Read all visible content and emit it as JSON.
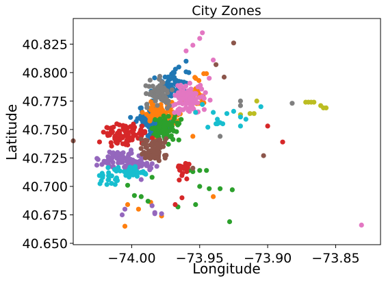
{
  "chart_data": {
    "type": "scatter",
    "title": "City Zones",
    "xlabel": "Longitude",
    "ylabel": "Latitude",
    "xlim": [
      -74.043,
      -73.817
    ],
    "ylim": [
      40.6488,
      40.8475
    ],
    "xticks": [
      -74.0,
      -73.95,
      -73.9,
      -73.85
    ],
    "xtick_labels": [
      "−74.00",
      "−73.95",
      "−73.90",
      "−73.85"
    ],
    "yticks": [
      40.65,
      40.675,
      40.7,
      40.725,
      40.75,
      40.775,
      40.8,
      40.825
    ],
    "ytick_labels": [
      "40.650",
      "40.675",
      "40.700",
      "40.725",
      "40.750",
      "40.775",
      "40.800",
      "40.825"
    ],
    "grid": false,
    "legend": "none",
    "clusters": [
      {
        "color": "#1f77b4",
        "dense": [
          {
            "center": [
              -73.985,
              40.755
            ],
            "spread": [
              0.006,
              0.006
            ],
            "n": 80
          },
          {
            "center": [
              -73.97,
              40.79
            ],
            "spread": [
              0.006,
              0.006
            ],
            "n": 60
          }
        ],
        "points": [
          [
            -73.993,
            40.769
          ],
          [
            -73.96,
            40.81
          ],
          [
            -73.985,
            40.775
          ],
          [
            -73.958,
            40.8
          ]
        ]
      },
      {
        "color": "#ff7f0e",
        "dense": [
          {
            "center": [
              -73.977,
              40.764
            ],
            "spread": [
              0.006,
              0.004
            ],
            "n": 75
          },
          {
            "center": [
              -73.952,
              40.782
            ],
            "spread": [
              0.003,
              0.006
            ],
            "n": 25
          }
        ],
        "points": [
          [
            -73.947,
            40.799
          ],
          [
            -73.961,
            40.774
          ],
          [
            -73.98,
            40.74
          ],
          [
            -73.965,
            40.758
          ],
          [
            -73.945,
            40.799
          ],
          [
            -73.94,
            40.691
          ],
          [
            -73.955,
            40.744
          ],
          [
            -74.005,
            40.665
          ],
          [
            -73.995,
            40.68
          ],
          [
            -73.978,
            40.674
          ],
          [
            -73.986,
            40.686
          ],
          [
            -73.983,
            40.743
          ],
          [
            -74.003,
            40.684
          ]
        ]
      },
      {
        "color": "#2ca02c",
        "dense": [
          {
            "center": [
              -73.976,
              40.751
            ],
            "spread": [
              0.005,
              0.005
            ],
            "n": 80
          }
        ],
        "points": [
          [
            -73.968,
            40.763
          ],
          [
            -73.973,
            40.737
          ],
          [
            -73.958,
            40.714
          ],
          [
            -73.955,
            40.713
          ],
          [
            -73.95,
            40.714
          ],
          [
            -73.945,
            40.714
          ],
          [
            -73.95,
            40.7
          ],
          [
            -73.943,
            40.698
          ],
          [
            -73.935,
            40.698
          ],
          [
            -73.926,
            40.697
          ],
          [
            -73.966,
            40.682
          ],
          [
            -73.953,
            40.684
          ],
          [
            -73.928,
            40.669
          ],
          [
            -73.988,
            40.687
          ],
          [
            -73.998,
            40.692
          ],
          [
            -74.003,
            40.701
          ],
          [
            -73.993,
            40.691
          ],
          [
            -73.985,
            40.708
          ]
        ]
      },
      {
        "color": "#d62728",
        "dense": [
          {
            "center": [
              -74.005,
              40.745
            ],
            "spread": [
              0.008,
              0.005
            ],
            "n": 90
          },
          {
            "center": [
              -73.962,
              40.715
            ],
            "spread": [
              0.003,
              0.004
            ],
            "n": 20
          }
        ],
        "points": [
          [
            -73.968,
            40.684
          ],
          [
            -73.963,
            40.69
          ],
          [
            -73.9,
            40.753
          ],
          [
            -73.889,
            40.739
          ]
        ]
      },
      {
        "color": "#9467bd",
        "dense": [
          {
            "center": [
              -74.008,
              40.724
            ],
            "spread": [
              0.007,
              0.004
            ],
            "n": 70
          },
          {
            "center": [
              -73.995,
              40.718
            ],
            "spread": [
              0.006,
              0.003
            ],
            "n": 35
          }
        ],
        "points": [
          [
            -74.005,
            40.68
          ],
          [
            -74.007,
            40.675
          ],
          [
            -73.985,
            40.683
          ],
          [
            -73.983,
            40.676
          ],
          [
            -73.983,
            40.677
          ],
          [
            -73.978,
            40.676
          ],
          [
            -73.993,
            40.706
          ]
        ]
      },
      {
        "color": "#8c564b",
        "dense": [
          {
            "center": [
              -73.983,
              40.732
            ],
            "spread": [
              0.005,
              0.006
            ],
            "n": 70
          }
        ],
        "points": [
          [
            -73.955,
            40.716
          ],
          [
            -73.938,
            40.807
          ],
          [
            -73.932,
            40.796
          ],
          [
            -73.925,
            40.826
          ],
          [
            -73.903,
            40.727
          ],
          [
            -74.043,
            40.74
          ]
        ]
      },
      {
        "color": "#e377c2",
        "dense": [
          {
            "center": [
              -73.958,
              40.777
            ],
            "spread": [
              0.006,
              0.007
            ],
            "n": 90
          }
        ],
        "points": [
          [
            -73.948,
            40.835
          ],
          [
            -73.95,
            40.83
          ],
          [
            -73.955,
            40.824
          ],
          [
            -73.96,
            40.819
          ],
          [
            -73.943,
            40.795
          ],
          [
            -73.94,
            40.811
          ],
          [
            -73.968,
            40.78
          ],
          [
            -73.962,
            40.781
          ],
          [
            -73.831,
            40.666
          ]
        ]
      },
      {
        "color": "#7f7f7f",
        "dense": [
          {
            "center": [
              -73.98,
              40.782
            ],
            "spread": [
              0.005,
              0.005
            ],
            "n": 70
          }
        ],
        "points": [
          [
            -73.935,
            40.744
          ],
          [
            -73.92,
            40.771
          ],
          [
            -73.882,
            40.773
          ],
          [
            -73.92,
            40.775
          ]
        ]
      },
      {
        "color": "#bcbd22",
        "dense": [],
        "points": [
          [
            -73.872,
            40.774
          ],
          [
            -73.87,
            40.774
          ],
          [
            -73.868,
            40.774
          ],
          [
            -73.866,
            40.774
          ],
          [
            -73.861,
            40.771
          ],
          [
            -73.859,
            40.769
          ],
          [
            -73.857,
            40.769
          ],
          [
            -73.913,
            40.764
          ],
          [
            -73.91,
            40.764
          ],
          [
            -73.908,
            40.775
          ],
          [
            -73.92,
            40.763
          ]
        ]
      },
      {
        "color": "#17becf",
        "dense": [
          {
            "center": [
              -74.0,
              40.712
            ],
            "spread": [
              0.005,
              0.003
            ],
            "n": 40
          },
          {
            "center": [
              -74.015,
              40.71
            ],
            "spread": [
              0.004,
              0.004
            ],
            "n": 20
          }
        ],
        "points": [
          [
            -73.953,
            40.765
          ],
          [
            -73.948,
            40.772
          ],
          [
            -73.94,
            40.765
          ],
          [
            -73.937,
            40.759
          ],
          [
            -73.935,
            40.756
          ],
          [
            -73.93,
            40.764
          ],
          [
            -73.925,
            40.766
          ],
          [
            -73.916,
            40.759
          ],
          [
            -73.92,
            40.753
          ],
          [
            -73.944,
            40.752
          ],
          [
            -73.938,
            40.755
          ],
          [
            -73.92,
            40.761
          ],
          [
            -73.905,
            40.77
          ],
          [
            -73.937,
            40.755
          ],
          [
            -73.933,
            40.755
          ],
          [
            -74.017,
            40.712
          ],
          [
            -74.012,
            40.706
          ]
        ]
      }
    ]
  }
}
